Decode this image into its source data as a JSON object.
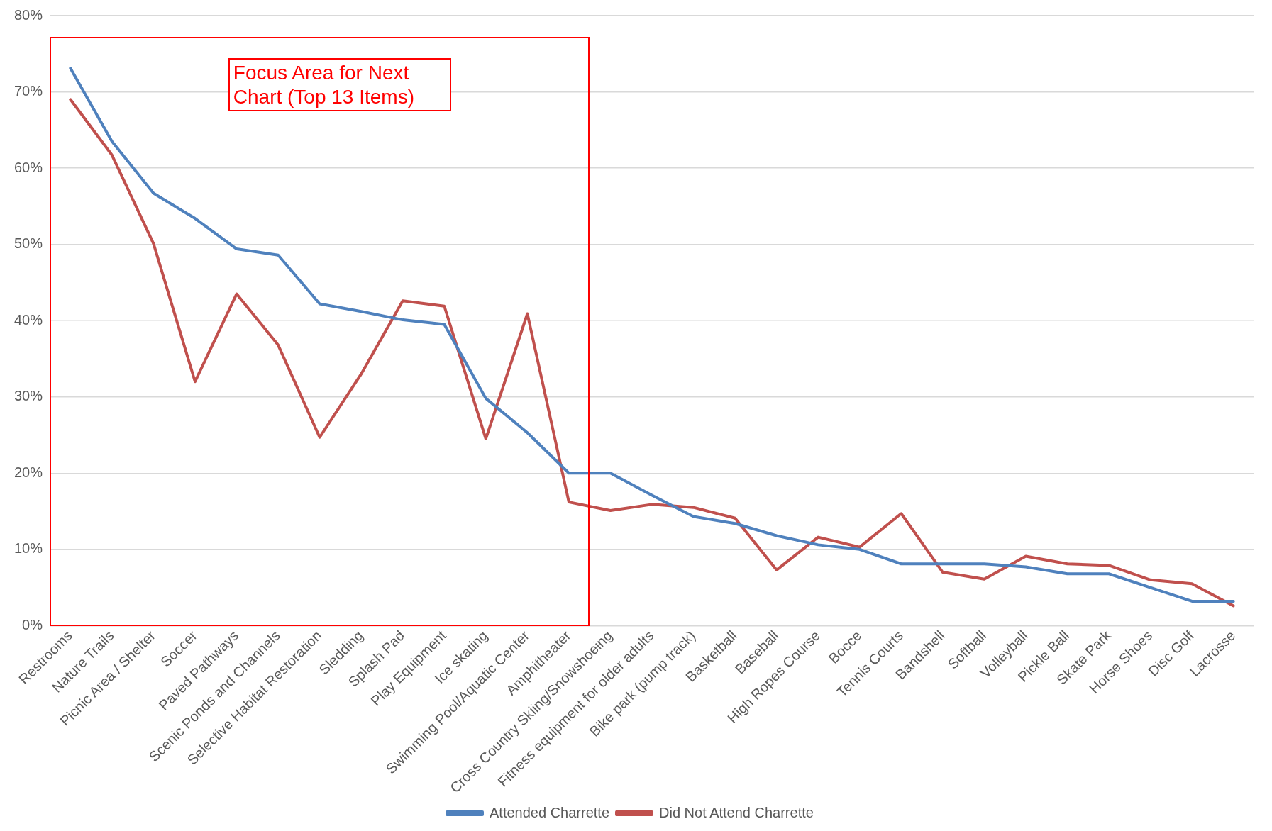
{
  "chart_data": {
    "type": "line",
    "categories": [
      "Restrooms",
      "Nature Trails",
      "Picnic Area / Shelter",
      "Soccer",
      "Paved Pathways",
      "Scenic Ponds and Channels",
      "Selective Habitat Restoration",
      "Sledding",
      "Splash Pad",
      "Play Equipment",
      "Ice skating",
      "Swimming Pool/Aquatic Center",
      "Amphitheater",
      "Cross Country Skiing/Snowshoeing",
      "Fitness equipment for older adults",
      "Bike park (pump track)",
      "Basketball",
      "Baseball",
      "High Ropes Course",
      "Bocce",
      "Tennis Courts",
      "Bandshell",
      "Softball",
      "Volleyball",
      "Pickle Ball",
      "Skate Park",
      "Horse Shoes",
      "Disc Golf",
      "Lacrosse"
    ],
    "series": [
      {
        "name": "Attended Charrette",
        "color": "#4f81bd",
        "values": [
          73.1,
          63.5,
          56.7,
          53.4,
          49.4,
          48.6,
          42.2,
          41.2,
          40.1,
          39.5,
          29.8,
          25.3,
          20.0,
          20.0,
          17.1,
          14.3,
          13.4,
          11.8,
          10.6,
          10.0,
          8.1,
          8.1,
          8.1,
          7.7,
          6.8,
          6.8,
          5.0,
          3.2,
          3.2
        ]
      },
      {
        "name": "Did Not Attend Charrette",
        "color": "#c0504d",
        "values": [
          69.0,
          61.7,
          50.1,
          32.0,
          43.5,
          36.8,
          24.7,
          33.0,
          42.6,
          41.9,
          24.5,
          40.9,
          16.2,
          15.1,
          15.9,
          15.5,
          14.1,
          7.3,
          11.6,
          10.3,
          14.7,
          7.0,
          6.1,
          9.1,
          8.1,
          7.9,
          6.0,
          5.5,
          2.6
        ]
      }
    ],
    "ylim": [
      0,
      80
    ],
    "yticks": [
      {
        "value": 0,
        "label": "0%"
      },
      {
        "value": 10,
        "label": "10%"
      },
      {
        "value": 20,
        "label": "20%"
      },
      {
        "value": 30,
        "label": "30%"
      },
      {
        "value": 40,
        "label": "40%"
      },
      {
        "value": 50,
        "label": "50%"
      },
      {
        "value": 60,
        "label": "60%"
      },
      {
        "value": 70,
        "label": "70%"
      },
      {
        "value": 80,
        "label": "80%"
      }
    ],
    "grid": "y",
    "legend": "bottom",
    "marker": "none",
    "line_style": "solid",
    "annotations": [
      "Focus Area for Next Chart (Top 13 Items)"
    ]
  }
}
